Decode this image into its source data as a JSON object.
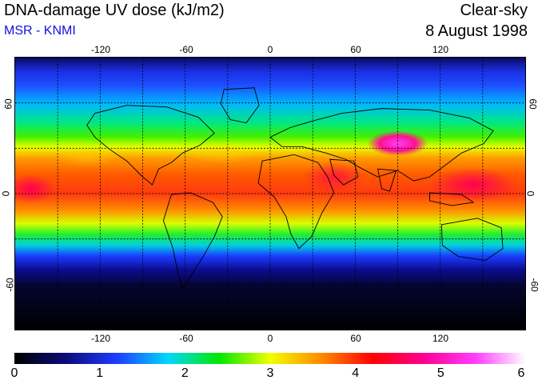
{
  "header": {
    "title": "DNA-damage UV dose (kJ/m2)",
    "source": "MSR - KNMI",
    "condition": "Clear-sky",
    "date": "8 August 1998"
  },
  "map": {
    "lon_ticks": [
      "-120",
      "-60",
      "0",
      "60",
      "120"
    ],
    "lat_ticks": [
      "60",
      "0",
      "-60"
    ],
    "lon_values": [
      -120,
      -60,
      0,
      60,
      120
    ],
    "lat_values": [
      60,
      0,
      -60
    ],
    "lon_range": [
      -180,
      180
    ],
    "lat_range": [
      -90,
      90
    ],
    "gridlines": true,
    "gridline_interval_deg": 30
  },
  "colorbar": {
    "labels": [
      "0",
      "1",
      "2",
      "3",
      "4",
      "5",
      "6"
    ],
    "range": [
      0,
      6
    ],
    "colors": [
      "#000000",
      "#0b0b7a",
      "#1e3cff",
      "#00d8ff",
      "#00e800",
      "#f2ff00",
      "#ff8a00",
      "#ff0000",
      "#ff0090",
      "#ff3cff",
      "#ffffff"
    ]
  }
}
